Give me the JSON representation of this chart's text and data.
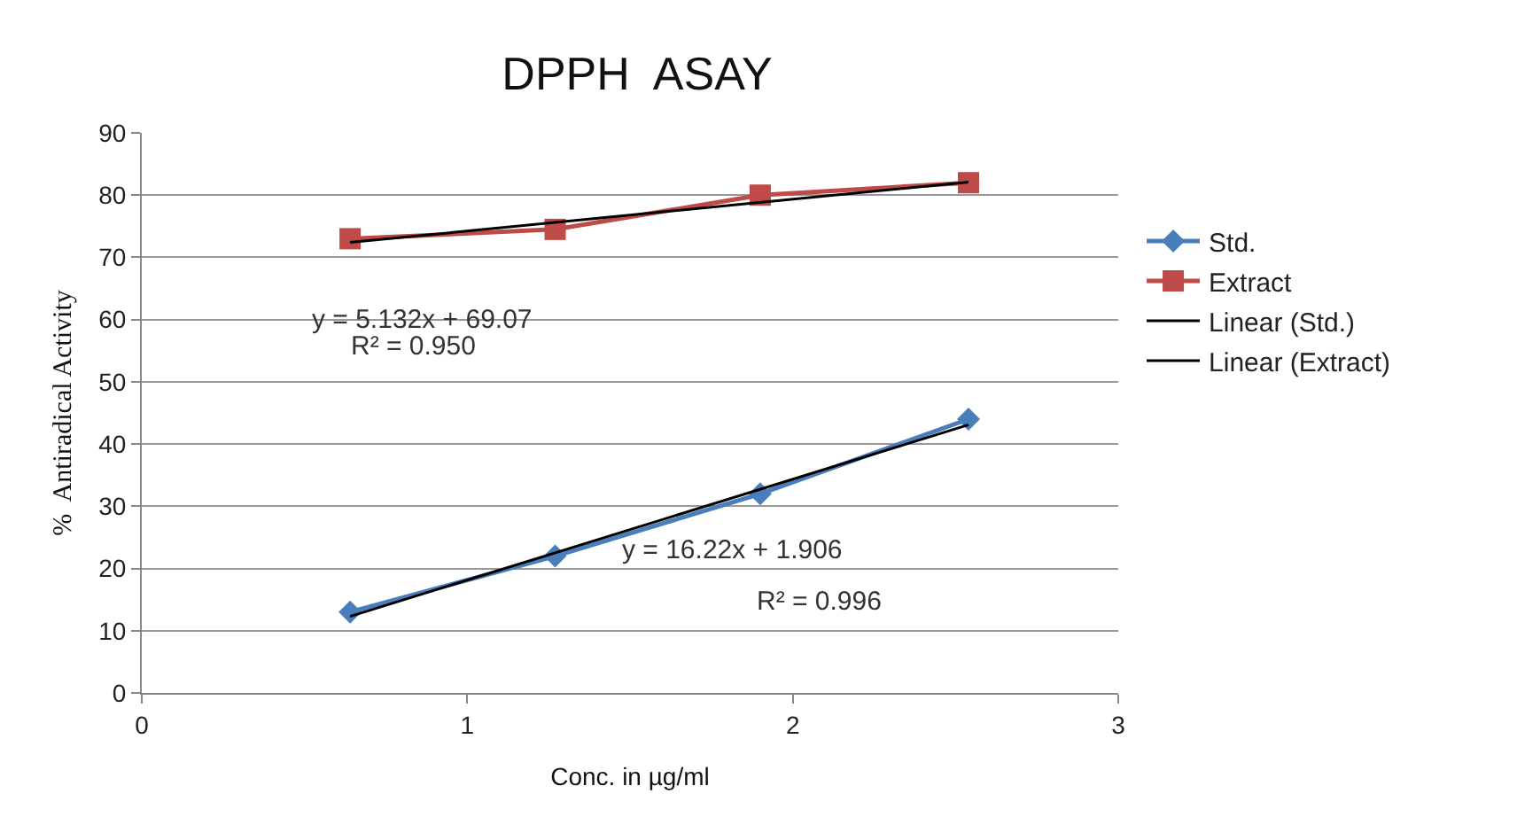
{
  "chart_data": {
    "type": "line",
    "title": "DPPH  ASAY",
    "xlabel": "Conc. in µg/ml",
    "ylabel": "%  Antiradical Activity",
    "xlim": [
      0,
      3
    ],
    "xticks": [
      0,
      1,
      2,
      3
    ],
    "ylim": [
      0,
      90
    ],
    "yticks": [
      0,
      10,
      20,
      30,
      40,
      50,
      60,
      70,
      80,
      90
    ],
    "grid": "y",
    "legend": "right",
    "series": [
      {
        "name": "Std.",
        "color": "#4a7ebb",
        "marker": "diamond",
        "x": [
          0.64,
          1.27,
          1.9,
          2.54
        ],
        "values": [
          13,
          22,
          32,
          44
        ]
      },
      {
        "name": "Extract",
        "color": "#be4b48",
        "marker": "square",
        "x": [
          0.64,
          1.27,
          1.9,
          2.54
        ],
        "values": [
          73,
          74.5,
          80,
          82
        ]
      },
      {
        "name": "Linear (Std.)",
        "color": "#000000",
        "marker": "none",
        "x": [
          0.64,
          2.54
        ],
        "values": [
          12.3,
          43.1
        ]
      },
      {
        "name": "Linear (Extract)",
        "color": "#000000",
        "marker": "none",
        "x": [
          0.64,
          2.54
        ],
        "values": [
          72.4,
          82.1
        ]
      }
    ],
    "annotations": [
      "y = 5.132x + 69.07",
      "R² = 0.950",
      "y = 16.22x + 1.906",
      "R² = 0.996"
    ]
  }
}
